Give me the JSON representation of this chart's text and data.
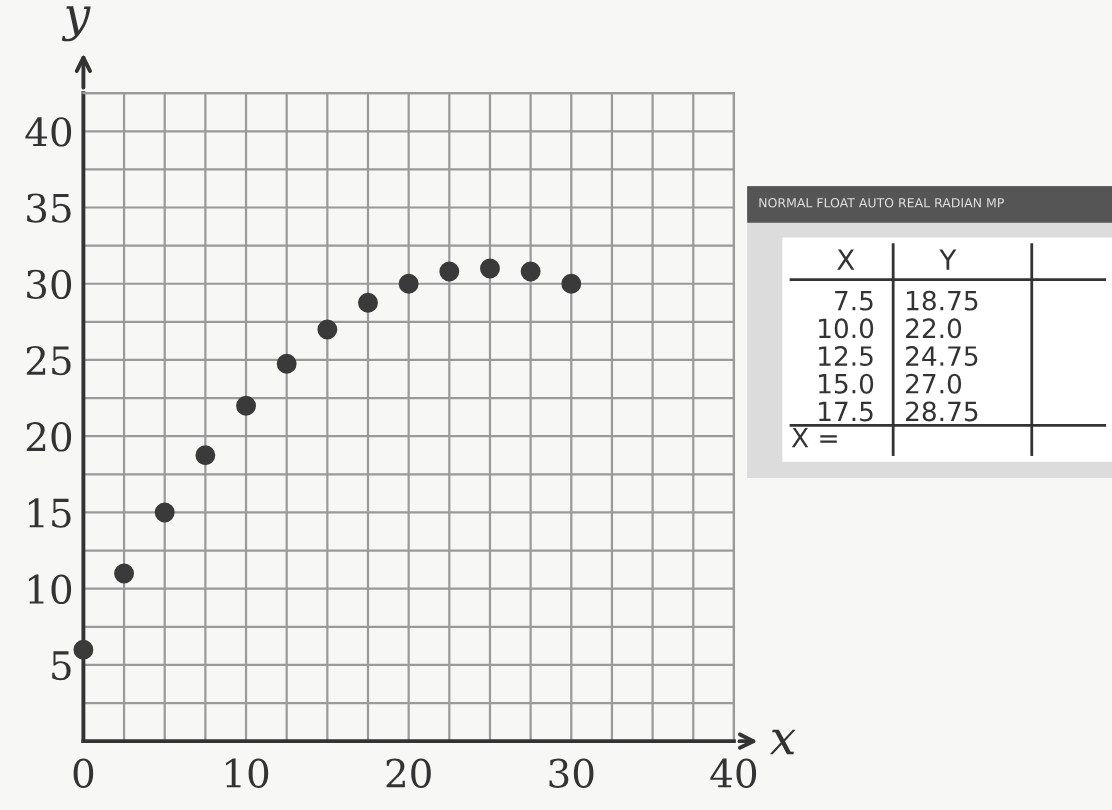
{
  "chart_data": {
    "type": "scatter",
    "xlabel": "x",
    "ylabel": "y",
    "x": [
      0,
      2.5,
      5,
      7.5,
      10,
      12.5,
      15,
      17.5,
      20,
      22.5,
      25,
      27.5,
      30
    ],
    "series": [
      {
        "color": "#3a3a3a",
        "values": [
          6,
          11,
          15,
          18.75,
          22,
          24.75,
          27,
          28.75,
          30,
          30.8,
          31,
          30.8,
          30
        ]
      }
    ],
    "marker": "circle",
    "xlim": [
      0,
      40
    ],
    "ylim": [
      0,
      42.5
    ],
    "xticks": [
      0,
      {
        "value": 2.5,
        "label": null
      },
      {
        "value": 5,
        "label": null
      },
      {
        "value": 7.5,
        "label": null
      },
      10,
      {
        "value": 12.5,
        "label": null
      },
      {
        "value": 15,
        "label": null
      },
      {
        "value": 17.5,
        "label": null
      },
      20,
      {
        "value": 22.5,
        "label": null
      },
      {
        "value": 25,
        "label": null
      },
      {
        "value": 27.5,
        "label": null
      },
      30,
      {
        "value": 32.5,
        "label": null
      },
      {
        "value": 35,
        "label": null
      },
      {
        "value": 37.5,
        "label": null
      },
      40
    ],
    "yticks": [
      {
        "value": 2.5,
        "label": null
      },
      5,
      {
        "value": 7.5,
        "label": null
      },
      10,
      {
        "value": 12.5,
        "label": null
      },
      15,
      {
        "value": 17.5,
        "label": null
      },
      20,
      {
        "value": 22.5,
        "label": null
      },
      25,
      {
        "value": 27.5,
        "label": null
      },
      30,
      {
        "value": 32.5,
        "label": null
      },
      35,
      {
        "value": 37.5,
        "label": null
      },
      40,
      {
        "value": 42.5,
        "label": null
      }
    ],
    "grid": true,
    "annotations": [
      "NORMAL FLOAT AUTO REAL RADIAN MP",
      "X",
      "Y",
      "7.5",
      "18.75",
      "10.0",
      "22.0",
      "12.5",
      "24.75",
      "15.0",
      "27.0",
      "17.5",
      "28.75",
      "X ="
    ]
  }
}
